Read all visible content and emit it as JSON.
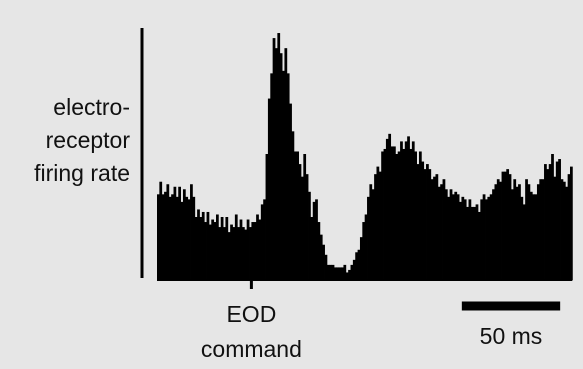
{
  "chart_data": {
    "type": "bar",
    "title": "",
    "ylabel_lines": [
      "electro-",
      "receptor",
      "firing rate"
    ],
    "event_label_lines": [
      "EOD",
      "command"
    ],
    "scale_bar_label": "50 ms",
    "scale_bar_ms": 50,
    "event_time_ms": 48,
    "bin_width_ms": 1.2,
    "xlim": [
      0,
      210
    ],
    "ylim": [
      0,
      100
    ],
    "grid": false,
    "legend": "none",
    "bar_color": "#000000",
    "background_color": "#e6e6e6",
    "values": [
      34,
      39,
      34,
      35,
      38,
      33,
      34,
      37,
      33,
      37,
      31,
      36,
      33,
      32,
      38,
      33,
      25,
      28,
      25,
      27,
      23,
      27,
      22,
      24,
      23,
      26,
      21,
      25,
      21,
      25,
      19,
      22,
      21,
      26,
      21,
      24,
      21,
      20,
      24,
      21,
      23,
      23,
      26,
      24,
      30,
      32,
      50,
      72,
      82,
      96,
      92,
      98,
      90,
      83,
      92,
      82,
      70,
      59,
      51,
      51,
      46,
      41,
      50,
      42,
      35,
      25,
      31,
      32,
      23,
      18,
      14,
      10,
      6,
      6,
      6,
      5,
      5,
      5,
      5,
      6,
      3,
      4,
      6,
      8,
      11,
      12,
      17,
      23,
      26,
      33,
      38,
      36,
      42,
      45,
      43,
      51,
      52,
      56,
      58,
      53,
      53,
      50,
      51,
      55,
      52,
      55,
      57,
      52,
      55,
      51,
      46,
      51,
      47,
      44,
      46,
      44,
      40,
      41,
      42,
      37,
      38,
      40,
      36,
      33,
      36,
      34,
      35,
      34,
      31,
      33,
      32,
      29,
      32,
      29,
      29,
      30,
      27,
      32,
      34,
      32,
      33,
      34,
      36,
      38,
      40,
      39,
      43,
      43,
      44,
      42,
      36,
      40,
      37,
      38,
      33,
      30,
      40,
      38,
      35,
      34,
      34,
      38,
      40,
      40,
      46,
      44,
      46,
      50,
      41,
      47,
      48,
      40,
      39,
      37,
      42,
      45
    ]
  }
}
